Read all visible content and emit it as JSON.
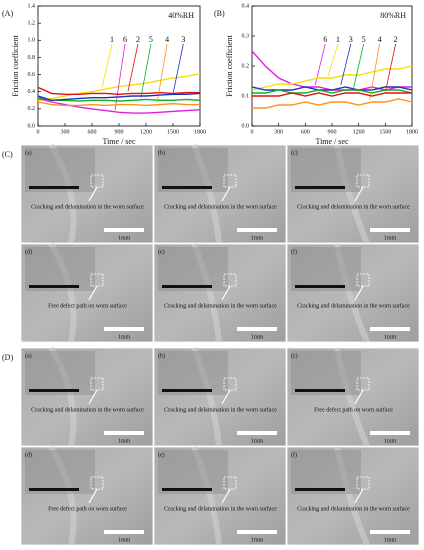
{
  "chart_data": [
    {
      "type": "line",
      "panel_label": "(A)",
      "annotation": "40%RH",
      "x_label": "Time / sec",
      "y_label": "Friction coefficient",
      "x": [
        0,
        150,
        300,
        450,
        600,
        750,
        900,
        1050,
        1200,
        1350,
        1500,
        1650,
        1800
      ],
      "xlim": [
        0,
        1800
      ],
      "xticks": [
        0,
        300,
        600,
        900,
        1200,
        1500,
        1800
      ],
      "ylim": [
        0,
        1.4
      ],
      "yticks": [
        {
          "value": 0,
          "label": "0.0"
        },
        0.2,
        0.4,
        0.6,
        0.8,
        {
          "value": 1,
          "label": "1.0"
        },
        1.2,
        1.4
      ],
      "series": [
        {
          "name": "1",
          "color": "#f5e000",
          "values": [
            0.3,
            0.32,
            0.35,
            0.38,
            0.4,
            0.43,
            0.46,
            0.48,
            0.5,
            0.53,
            0.56,
            0.58,
            0.61
          ]
        },
        {
          "name": "6",
          "color": "#e020e0",
          "values": [
            0.32,
            0.28,
            0.25,
            0.22,
            0.2,
            0.18,
            0.16,
            0.15,
            0.15,
            0.16,
            0.17,
            0.18,
            0.19
          ]
        },
        {
          "name": "2",
          "color": "#e01010",
          "values": [
            0.45,
            0.38,
            0.37,
            0.37,
            0.38,
            0.38,
            0.37,
            0.38,
            0.38,
            0.39,
            0.38,
            0.39,
            0.39
          ]
        },
        {
          "name": "5",
          "color": "#10b020",
          "values": [
            0.33,
            0.3,
            0.3,
            0.29,
            0.3,
            0.3,
            0.29,
            0.3,
            0.31,
            0.3,
            0.3,
            0.31,
            0.3
          ]
        },
        {
          "name": "4",
          "color": "#ff9020",
          "values": [
            0.28,
            0.25,
            0.24,
            0.24,
            0.25,
            0.24,
            0.25,
            0.25,
            0.24,
            0.25,
            0.26,
            0.25,
            0.25
          ]
        },
        {
          "name": "3",
          "color": "#2030c0",
          "values": [
            0.35,
            0.3,
            0.31,
            0.32,
            0.33,
            0.33,
            0.34,
            0.35,
            0.35,
            0.36,
            0.37,
            0.37,
            0.38
          ]
        }
      ]
    },
    {
      "type": "line",
      "panel_label": "(B)",
      "annotation": "80%RH",
      "x_label": "Time / sec",
      "y_label": "Friction coefficient",
      "x": [
        0,
        150,
        300,
        450,
        600,
        750,
        900,
        1050,
        1200,
        1350,
        1500,
        1650,
        1800
      ],
      "xlim": [
        0,
        1800
      ],
      "xticks": [
        0,
        300,
        600,
        900,
        1200,
        1500,
        1800
      ],
      "ylim": [
        0,
        0.4
      ],
      "yticks": [
        {
          "value": 0,
          "label": "0.0"
        },
        0.1,
        0.2,
        0.3,
        0.4
      ],
      "series": [
        {
          "name": "6",
          "color": "#e020e0",
          "values": [
            0.25,
            0.2,
            0.16,
            0.14,
            0.13,
            0.13,
            0.12,
            0.12,
            0.12,
            0.13,
            0.12,
            0.13,
            0.13
          ]
        },
        {
          "name": "1",
          "color": "#f5e000",
          "values": [
            0.12,
            0.13,
            0.14,
            0.14,
            0.15,
            0.16,
            0.16,
            0.17,
            0.17,
            0.18,
            0.19,
            0.19,
            0.2
          ]
        },
        {
          "name": "3",
          "color": "#2030c0",
          "values": [
            0.13,
            0.12,
            0.12,
            0.12,
            0.13,
            0.12,
            0.12,
            0.13,
            0.12,
            0.12,
            0.13,
            0.13,
            0.12
          ]
        },
        {
          "name": "5",
          "color": "#10b020",
          "values": [
            0.11,
            0.11,
            0.12,
            0.11,
            0.11,
            0.12,
            0.11,
            0.12,
            0.12,
            0.11,
            0.12,
            0.12,
            0.11
          ]
        },
        {
          "name": "4",
          "color": "#ff9020",
          "values": [
            0.06,
            0.06,
            0.07,
            0.07,
            0.08,
            0.07,
            0.08,
            0.08,
            0.07,
            0.08,
            0.08,
            0.09,
            0.08
          ]
        },
        {
          "name": "2",
          "color": "#e01010",
          "values": [
            0.1,
            0.1,
            0.1,
            0.11,
            0.1,
            0.11,
            0.1,
            0.11,
            0.11,
            0.1,
            0.11,
            0.11,
            0.11
          ]
        }
      ]
    }
  ],
  "figure_panels": [
    {
      "label": "(C)",
      "scale_bar": "1mm",
      "panels": [
        {
          "label": "(a)",
          "caption": "Cracking and delamination in the worn surface"
        },
        {
          "label": "(b)",
          "caption": "Cracking and delamination in the worn surface"
        },
        {
          "label": "(c)",
          "caption": "Cracking and delamination in the worn surface"
        },
        {
          "label": "(d)",
          "caption": "Free defect path on worn surface"
        },
        {
          "label": "(e)",
          "caption": "Cracking and delamination in the worn surface"
        },
        {
          "label": "(f)",
          "caption": "Cracking and delamination in the worn surface"
        }
      ]
    },
    {
      "label": "(D)",
      "scale_bar": "1mm",
      "panels": [
        {
          "label": "(a)",
          "caption": "Cracking and delamination in the worn surface"
        },
        {
          "label": "(b)",
          "caption": "Cracking and delamination in the worn surface"
        },
        {
          "label": "(c)",
          "caption": "Free defect path on worn surface"
        },
        {
          "label": "(d)",
          "caption": "Free defect path on worn surface"
        },
        {
          "label": "(e)",
          "caption": "Cracking and delamination in the worn surface"
        },
        {
          "label": "(f)",
          "caption": "Cracking and delamination in the worn surface"
        }
      ]
    }
  ]
}
